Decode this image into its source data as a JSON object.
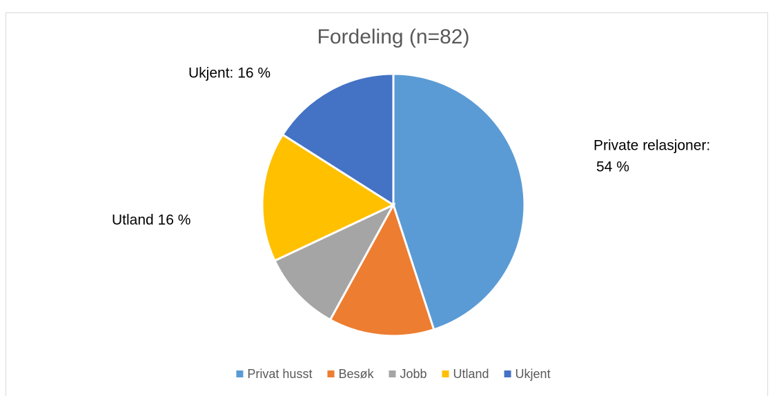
{
  "chart_data": {
    "type": "pie",
    "title": "Fordeling (n=82)",
    "categories": [
      "Privat husst",
      "Besøk",
      "Jobb",
      "Utland",
      "Ukjent"
    ],
    "values": [
      45,
      13,
      10,
      16,
      16
    ],
    "colors": [
      "#5b9bd5",
      "#ed7d31",
      "#a5a5a5",
      "#ffc000",
      "#4472c4"
    ],
    "legend": "bottom",
    "annotations": [
      {
        "lines": [
          "Private relasjoner:",
          "54 %"
        ]
      },
      {
        "lines": [
          "Utland 16 %"
        ]
      },
      {
        "lines": [
          "Ukjent: 16 %"
        ]
      }
    ]
  }
}
